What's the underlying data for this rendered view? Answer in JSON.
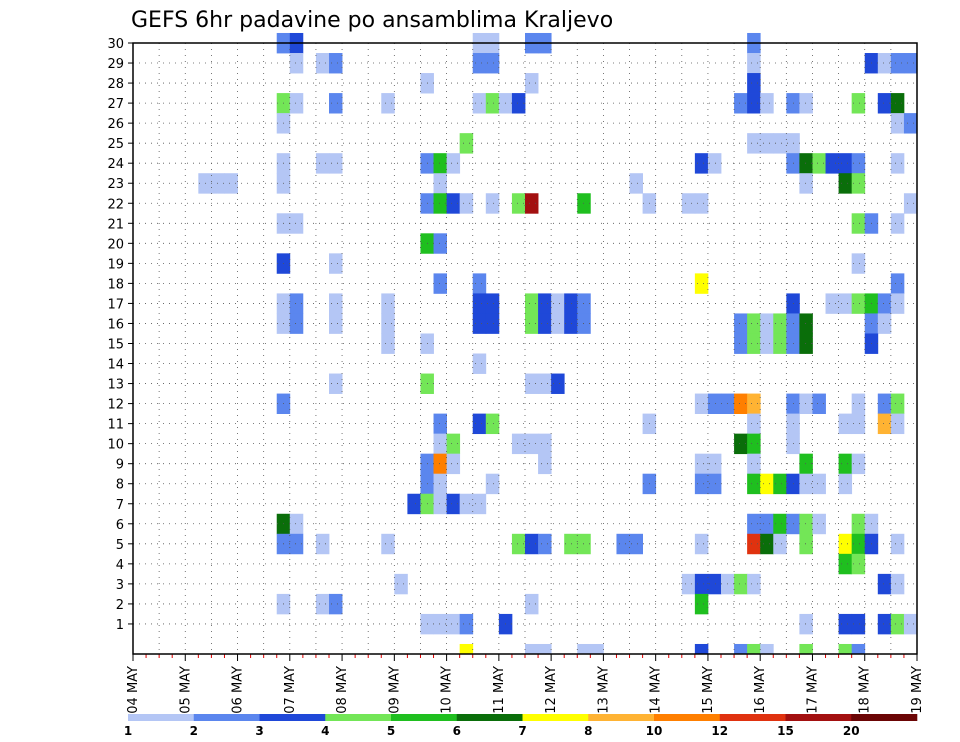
{
  "chart_data": {
    "type": "heatmap",
    "title": "GEFS 6hr padavine po ansamblima Kraljevo",
    "x_labels": [
      "04 MAY",
      "05 MAY",
      "06 MAY",
      "07 MAY",
      "08 MAY",
      "09 MAY",
      "10 MAY",
      "11 MAY",
      "12 MAY",
      "13 MAY",
      "14 MAY",
      "15 MAY",
      "16 MAY",
      "17 MAY",
      "18 MAY",
      "19 MAY"
    ],
    "y_labels": [
      "1",
      "2",
      "3",
      "4",
      "5",
      "6",
      "7",
      "8",
      "9",
      "10",
      "11",
      "12",
      "13",
      "14",
      "15",
      "16",
      "17",
      "18",
      "19",
      "20",
      "21",
      "22",
      "23",
      "24",
      "25",
      "26",
      "27",
      "28",
      "29",
      "30"
    ],
    "steps_per_day": 4,
    "grid": true,
    "legend": {
      "placement": "bottom",
      "labels": [
        "1",
        "2",
        "3",
        "4",
        "5",
        "6",
        "7",
        "8",
        "10",
        "12",
        "15",
        "20"
      ],
      "colors": [
        "#b4c6f5",
        "#5b86ee",
        "#1f48d8",
        "#73e657",
        "#1fbf1f",
        "#0a6e0a",
        "#ffff00",
        "#ffb333",
        "#ff7f00",
        "#e0320f",
        "#a31010",
        "#6b0505"
      ]
    },
    "cells": [
      [
        30,
        11,
        2
      ],
      [
        30,
        12,
        3
      ],
      [
        30,
        26,
        1
      ],
      [
        30,
        27,
        1
      ],
      [
        30,
        30,
        2
      ],
      [
        30,
        31,
        2
      ],
      [
        30,
        47,
        2
      ],
      [
        29,
        12,
        1
      ],
      [
        29,
        14,
        1
      ],
      [
        29,
        15,
        2
      ],
      [
        29,
        26,
        2
      ],
      [
        29,
        27,
        2
      ],
      [
        29,
        47,
        1
      ],
      [
        29,
        56,
        3
      ],
      [
        29,
        57,
        1
      ],
      [
        29,
        58,
        2
      ],
      [
        29,
        59,
        2
      ],
      [
        28,
        22,
        1
      ],
      [
        28,
        30,
        1
      ],
      [
        28,
        47,
        3
      ],
      [
        27,
        11,
        4
      ],
      [
        27,
        12,
        1
      ],
      [
        27,
        15,
        2
      ],
      [
        27,
        19,
        1
      ],
      [
        27,
        26,
        1
      ],
      [
        27,
        27,
        4
      ],
      [
        27,
        28,
        1
      ],
      [
        27,
        29,
        3
      ],
      [
        27,
        46,
        2
      ],
      [
        27,
        47,
        3
      ],
      [
        27,
        48,
        1
      ],
      [
        27,
        50,
        2
      ],
      [
        27,
        51,
        1
      ],
      [
        27,
        55,
        4
      ],
      [
        27,
        57,
        3
      ],
      [
        27,
        58,
        6
      ],
      [
        26,
        11,
        1
      ],
      [
        26,
        58,
        1
      ],
      [
        26,
        59,
        2
      ],
      [
        25,
        25,
        4
      ],
      [
        25,
        47,
        1
      ],
      [
        25,
        48,
        1
      ],
      [
        25,
        49,
        1
      ],
      [
        25,
        50,
        1
      ],
      [
        24,
        11,
        1
      ],
      [
        24,
        14,
        1
      ],
      [
        24,
        15,
        1
      ],
      [
        24,
        22,
        2
      ],
      [
        24,
        23,
        5
      ],
      [
        24,
        24,
        1
      ],
      [
        24,
        43,
        3
      ],
      [
        24,
        44,
        1
      ],
      [
        24,
        50,
        2
      ],
      [
        24,
        51,
        6
      ],
      [
        24,
        52,
        4
      ],
      [
        24,
        53,
        3
      ],
      [
        24,
        54,
        3
      ],
      [
        24,
        55,
        2
      ],
      [
        24,
        58,
        1
      ],
      [
        23,
        5,
        1
      ],
      [
        23,
        6,
        1
      ],
      [
        23,
        7,
        1
      ],
      [
        23,
        11,
        1
      ],
      [
        23,
        23,
        1
      ],
      [
        23,
        38,
        1
      ],
      [
        23,
        51,
        1
      ],
      [
        23,
        54,
        6
      ],
      [
        23,
        55,
        4
      ],
      [
        22,
        22,
        2
      ],
      [
        22,
        23,
        5
      ],
      [
        22,
        24,
        3
      ],
      [
        22,
        25,
        1
      ],
      [
        22,
        27,
        1
      ],
      [
        22,
        29,
        4
      ],
      [
        22,
        30,
        11
      ],
      [
        22,
        34,
        5
      ],
      [
        22,
        39,
        1
      ],
      [
        22,
        42,
        1
      ],
      [
        22,
        43,
        1
      ],
      [
        22,
        59,
        1
      ],
      [
        21,
        11,
        1
      ],
      [
        21,
        12,
        1
      ],
      [
        21,
        55,
        4
      ],
      [
        21,
        56,
        2
      ],
      [
        21,
        58,
        1
      ],
      [
        20,
        22,
        5
      ],
      [
        20,
        23,
        2
      ],
      [
        19,
        11,
        3
      ],
      [
        19,
        15,
        1
      ],
      [
        19,
        55,
        1
      ],
      [
        18,
        23,
        2
      ],
      [
        18,
        26,
        2
      ],
      [
        18,
        43,
        7
      ],
      [
        18,
        58,
        2
      ],
      [
        17,
        11,
        1
      ],
      [
        17,
        12,
        2
      ],
      [
        17,
        15,
        1
      ],
      [
        17,
        19,
        1
      ],
      [
        17,
        26,
        3
      ],
      [
        17,
        27,
        3
      ],
      [
        17,
        30,
        4
      ],
      [
        17,
        31,
        3
      ],
      [
        17,
        32,
        1
      ],
      [
        17,
        33,
        3
      ],
      [
        17,
        34,
        2
      ],
      [
        17,
        50,
        3
      ],
      [
        17,
        53,
        1
      ],
      [
        17,
        54,
        1
      ],
      [
        17,
        55,
        4
      ],
      [
        17,
        56,
        5
      ],
      [
        17,
        57,
        2
      ],
      [
        17,
        58,
        1
      ],
      [
        16,
        11,
        1
      ],
      [
        16,
        12,
        2
      ],
      [
        16,
        15,
        1
      ],
      [
        16,
        19,
        1
      ],
      [
        16,
        26,
        3
      ],
      [
        16,
        27,
        3
      ],
      [
        16,
        30,
        4
      ],
      [
        16,
        31,
        3
      ],
      [
        16,
        32,
        1
      ],
      [
        16,
        33,
        3
      ],
      [
        16,
        34,
        2
      ],
      [
        16,
        46,
        2
      ],
      [
        16,
        47,
        4
      ],
      [
        16,
        48,
        1
      ],
      [
        16,
        49,
        4
      ],
      [
        16,
        50,
        2
      ],
      [
        16,
        51,
        6
      ],
      [
        16,
        56,
        2
      ],
      [
        16,
        57,
        1
      ],
      [
        15,
        19,
        1
      ],
      [
        15,
        22,
        1
      ],
      [
        15,
        46,
        2
      ],
      [
        15,
        47,
        4
      ],
      [
        15,
        48,
        1
      ],
      [
        15,
        49,
        4
      ],
      [
        15,
        50,
        2
      ],
      [
        15,
        51,
        6
      ],
      [
        15,
        56,
        3
      ],
      [
        14,
        26,
        1
      ],
      [
        13,
        15,
        1
      ],
      [
        13,
        22,
        4
      ],
      [
        13,
        30,
        1
      ],
      [
        13,
        31,
        1
      ],
      [
        13,
        32,
        3
      ],
      [
        12,
        11,
        2
      ],
      [
        12,
        43,
        1
      ],
      [
        12,
        44,
        2
      ],
      [
        12,
        45,
        2
      ],
      [
        12,
        46,
        9
      ],
      [
        12,
        47,
        8
      ],
      [
        12,
        50,
        2
      ],
      [
        12,
        51,
        1
      ],
      [
        12,
        52,
        2
      ],
      [
        12,
        55,
        1
      ],
      [
        12,
        57,
        2
      ],
      [
        12,
        58,
        4
      ],
      [
        11,
        23,
        2
      ],
      [
        11,
        26,
        3
      ],
      [
        11,
        27,
        4
      ],
      [
        11,
        39,
        1
      ],
      [
        11,
        47,
        1
      ],
      [
        11,
        50,
        1
      ],
      [
        11,
        54,
        1
      ],
      [
        11,
        55,
        1
      ],
      [
        11,
        57,
        8
      ],
      [
        11,
        58,
        1
      ],
      [
        10,
        23,
        1
      ],
      [
        10,
        24,
        4
      ],
      [
        10,
        29,
        1
      ],
      [
        10,
        30,
        1
      ],
      [
        10,
        31,
        1
      ],
      [
        10,
        46,
        6
      ],
      [
        10,
        47,
        5
      ],
      [
        10,
        50,
        1
      ],
      [
        9,
        22,
        2
      ],
      [
        9,
        23,
        9
      ],
      [
        9,
        24,
        1
      ],
      [
        9,
        31,
        1
      ],
      [
        9,
        43,
        1
      ],
      [
        9,
        44,
        1
      ],
      [
        9,
        47,
        1
      ],
      [
        9,
        51,
        5
      ],
      [
        9,
        54,
        5
      ],
      [
        9,
        55,
        1
      ],
      [
        8,
        22,
        2
      ],
      [
        8,
        23,
        1
      ],
      [
        8,
        27,
        1
      ],
      [
        8,
        39,
        2
      ],
      [
        8,
        43,
        2
      ],
      [
        8,
        44,
        2
      ],
      [
        8,
        47,
        5
      ],
      [
        8,
        48,
        7
      ],
      [
        8,
        49,
        5
      ],
      [
        8,
        50,
        3
      ],
      [
        8,
        51,
        1
      ],
      [
        8,
        52,
        1
      ],
      [
        8,
        54,
        1
      ],
      [
        7,
        21,
        3
      ],
      [
        7,
        22,
        4
      ],
      [
        7,
        23,
        1
      ],
      [
        7,
        24,
        3
      ],
      [
        7,
        25,
        1
      ],
      [
        7,
        26,
        1
      ],
      [
        6,
        11,
        6
      ],
      [
        6,
        12,
        1
      ],
      [
        6,
        47,
        2
      ],
      [
        6,
        48,
        2
      ],
      [
        6,
        49,
        5
      ],
      [
        6,
        50,
        2
      ],
      [
        6,
        51,
        4
      ],
      [
        6,
        52,
        1
      ],
      [
        6,
        55,
        4
      ],
      [
        6,
        56,
        1
      ],
      [
        5,
        11,
        2
      ],
      [
        5,
        12,
        2
      ],
      [
        5,
        14,
        1
      ],
      [
        5,
        19,
        1
      ],
      [
        5,
        29,
        4
      ],
      [
        5,
        30,
        3
      ],
      [
        5,
        31,
        2
      ],
      [
        5,
        33,
        4
      ],
      [
        5,
        34,
        4
      ],
      [
        5,
        37,
        2
      ],
      [
        5,
        38,
        2
      ],
      [
        5,
        43,
        1
      ],
      [
        5,
        47,
        10
      ],
      [
        5,
        48,
        6
      ],
      [
        5,
        49,
        1
      ],
      [
        5,
        51,
        4
      ],
      [
        5,
        54,
        7
      ],
      [
        5,
        55,
        5
      ],
      [
        5,
        56,
        3
      ],
      [
        5,
        58,
        1
      ],
      [
        4,
        54,
        5
      ],
      [
        4,
        55,
        4
      ],
      [
        3,
        20,
        1
      ],
      [
        3,
        42,
        1
      ],
      [
        3,
        43,
        3
      ],
      [
        3,
        44,
        3
      ],
      [
        3,
        45,
        1
      ],
      [
        3,
        46,
        4
      ],
      [
        3,
        47,
        1
      ],
      [
        3,
        57,
        3
      ],
      [
        3,
        58,
        1
      ],
      [
        2,
        11,
        1
      ],
      [
        2,
        14,
        1
      ],
      [
        2,
        15,
        2
      ],
      [
        2,
        30,
        1
      ],
      [
        2,
        43,
        5
      ],
      [
        1,
        22,
        1
      ],
      [
        1,
        23,
        1
      ],
      [
        1,
        24,
        1
      ],
      [
        1,
        25,
        2
      ],
      [
        1,
        28,
        3
      ],
      [
        1,
        51,
        1
      ],
      [
        1,
        54,
        3
      ],
      [
        1,
        55,
        3
      ],
      [
        1,
        57,
        3
      ],
      [
        1,
        58,
        4
      ],
      [
        1,
        59,
        1
      ],
      [
        0,
        25,
        7
      ],
      [
        0,
        30,
        1
      ],
      [
        0,
        31,
        1
      ],
      [
        0,
        34,
        1
      ],
      [
        0,
        35,
        1
      ],
      [
        0,
        43,
        3
      ],
      [
        0,
        46,
        2
      ],
      [
        0,
        47,
        4
      ],
      [
        0,
        48,
        1
      ],
      [
        0,
        51,
        4
      ],
      [
        0,
        54,
        4
      ],
      [
        0,
        55,
        2
      ]
    ]
  }
}
